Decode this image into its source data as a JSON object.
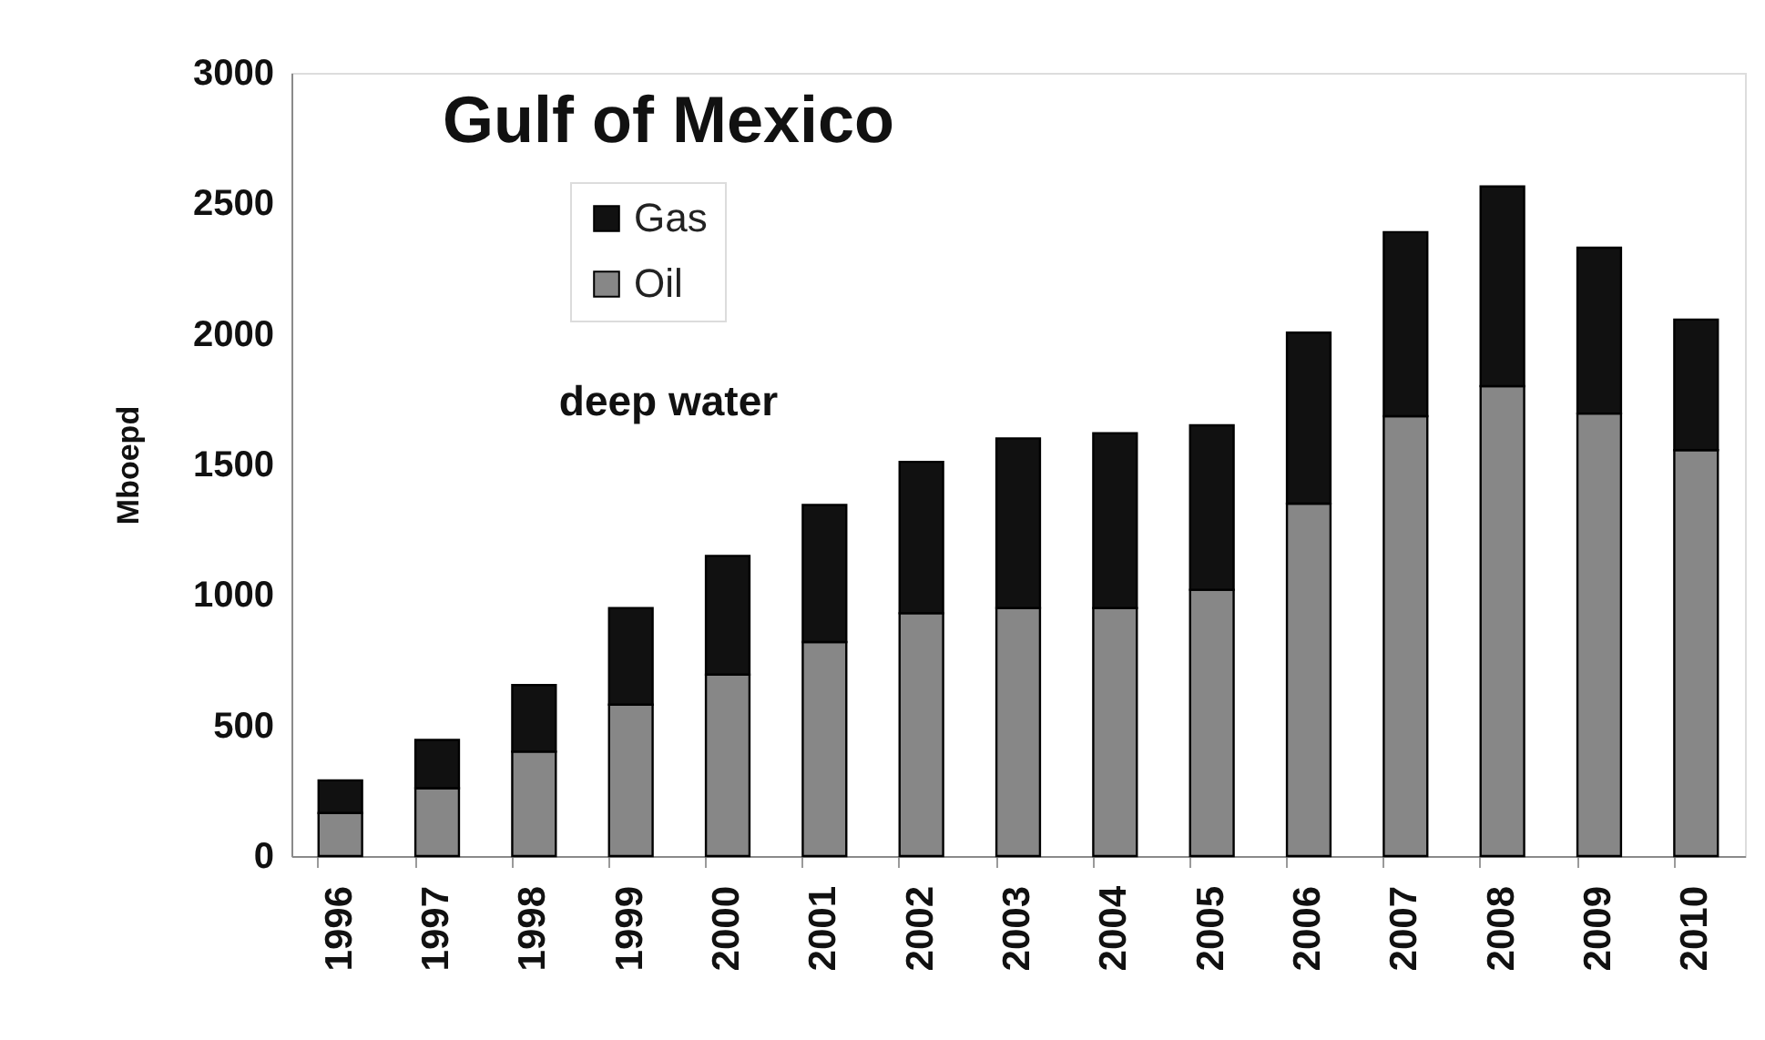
{
  "chart_data": {
    "type": "bar",
    "title": "Gulf of Mexico",
    "ylabel": "Mboepd",
    "annotations": [
      "deep water"
    ],
    "categories": [
      "1996",
      "1997",
      "1998",
      "1999",
      "2000",
      "2001",
      "2002",
      "2003",
      "2004",
      "2005",
      "2006",
      "2007",
      "2008",
      "2009",
      "2010"
    ],
    "series": [
      {
        "name": "Oil",
        "color": "#878787",
        "values": [
          165,
          260,
          400,
          580,
          695,
          820,
          930,
          950,
          950,
          1020,
          1350,
          1685,
          1800,
          1695,
          1555
        ]
      },
      {
        "name": "Gas",
        "color": "#111111",
        "values": [
          125,
          185,
          255,
          370,
          455,
          525,
          580,
          650,
          670,
          630,
          655,
          705,
          765,
          635,
          500
        ]
      }
    ],
    "stacked": true,
    "ylim": [
      0,
      3000
    ],
    "yticks": [
      0,
      500,
      1000,
      1500,
      2000,
      2500,
      3000
    ],
    "legend": "top left"
  }
}
